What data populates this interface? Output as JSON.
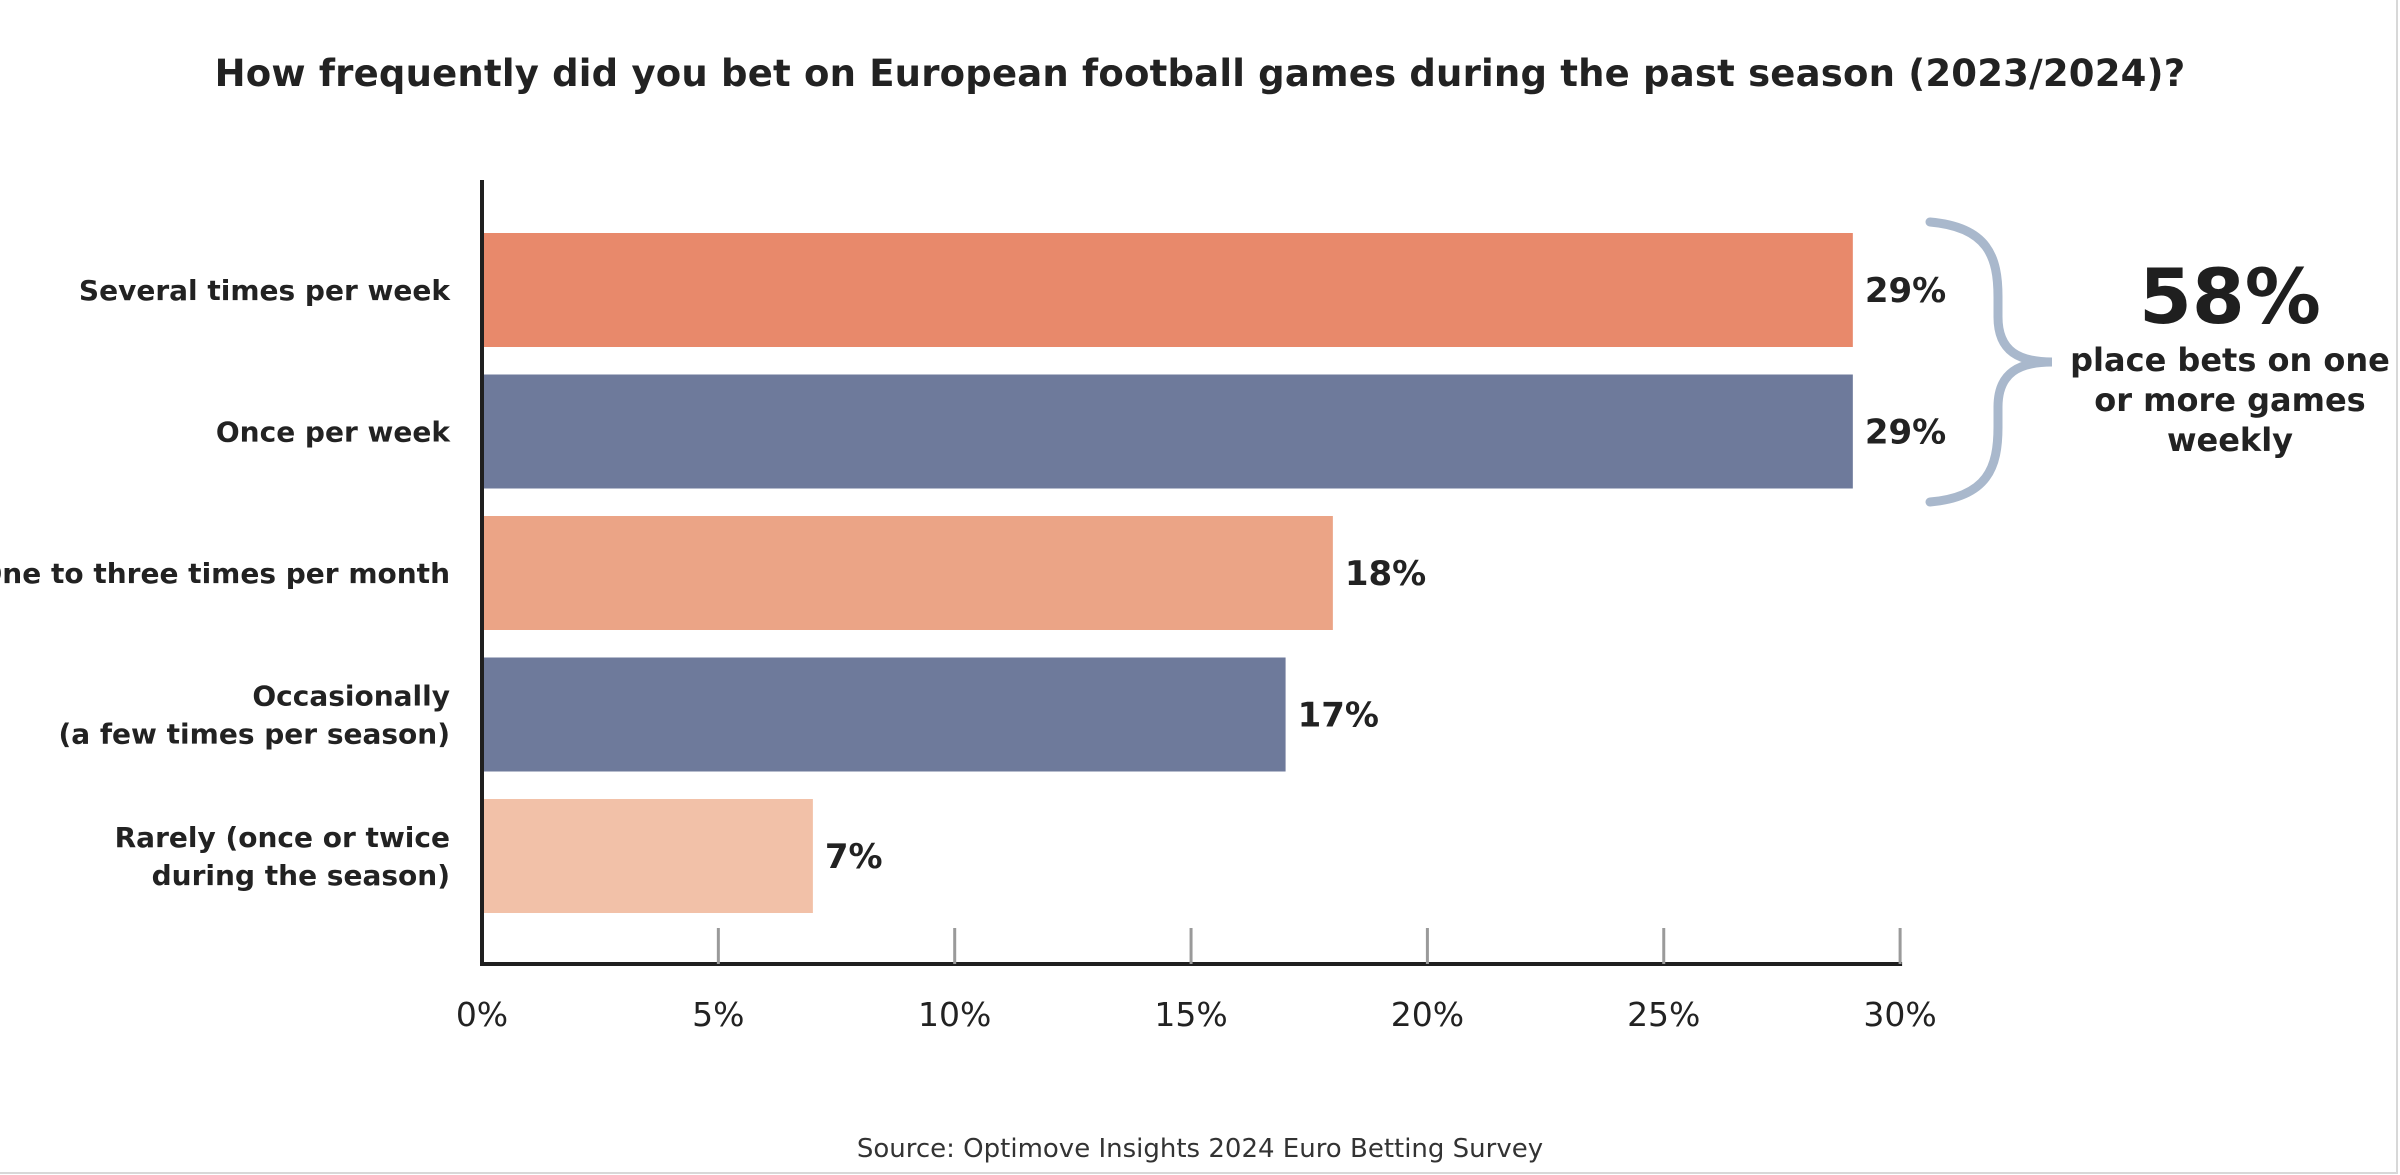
{
  "chart_data": {
    "type": "bar",
    "orientation": "horizontal",
    "title": "How frequently did you bet on European football games during the past season (2023/2024)?",
    "categories": [
      [
        "Several times per week"
      ],
      [
        "Once per week"
      ],
      [
        "One to three times per month"
      ],
      [
        "Occasionally",
        "(a few times per season)"
      ],
      [
        "Rarely (once or twice",
        "during the season)"
      ]
    ],
    "values": [
      29,
      29,
      18,
      17,
      7
    ],
    "value_labels": [
      "29%",
      "29%",
      "18%",
      "17%",
      "7%"
    ],
    "colors": [
      "#e8896b",
      "#6e7a9b",
      "#eba486",
      "#6e7a9b",
      "#f2c1a8"
    ],
    "xlim": [
      0,
      30
    ],
    "xticks": [
      0,
      5,
      10,
      15,
      20,
      25,
      30
    ],
    "xtick_labels": [
      "0%",
      "5%",
      "10%",
      "15%",
      "20%",
      "25%",
      "30%"
    ],
    "xlabel": "",
    "ylabel": "",
    "grid": false,
    "annotation": {
      "big_value": "58%",
      "text_lines": [
        "place bets on one",
        "or more games",
        "weekly"
      ],
      "brace_color": "#a9b8cc",
      "brackets_categories": [
        0,
        1
      ]
    },
    "source": "Source: Optimove Insights 2024 Euro Betting Survey"
  }
}
